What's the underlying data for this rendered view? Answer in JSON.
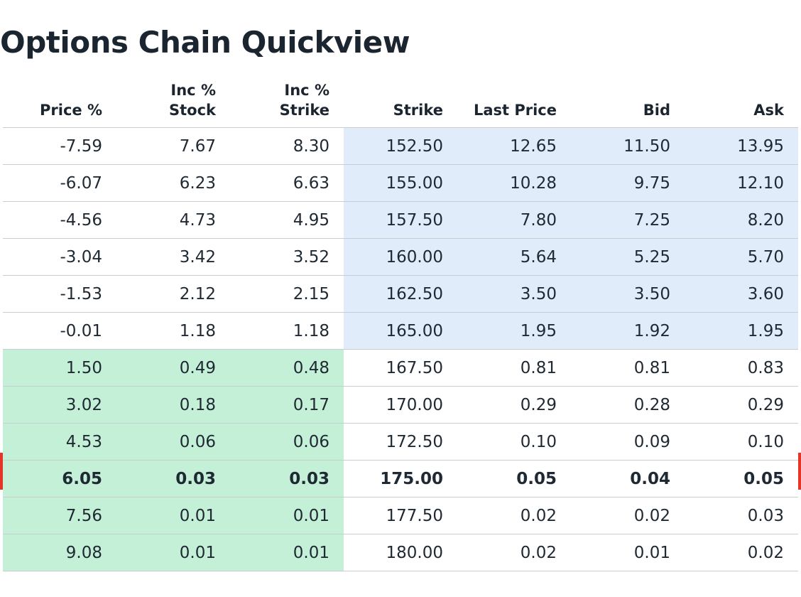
{
  "page": {
    "title": "Options Chain Quickview"
  },
  "colors": {
    "strike_band": "#e1ecfb",
    "premium_band": "#c5f0d8",
    "current_marker": "#e63426"
  },
  "table": {
    "columns": [
      "Price %",
      "Inc %\nStock",
      "Inc %\nStrike",
      "Strike",
      "Last Price",
      "Bid",
      "Ask"
    ],
    "rows": [
      [
        "-7.59",
        "7.67",
        "8.30",
        "152.50",
        "12.65",
        "11.50",
        "13.95"
      ],
      [
        "-6.07",
        "6.23",
        "6.63",
        "155.00",
        "10.28",
        "9.75",
        "12.10"
      ],
      [
        "-4.56",
        "4.73",
        "4.95",
        "157.50",
        "7.80",
        "7.25",
        "8.20"
      ],
      [
        "-3.04",
        "3.42",
        "3.52",
        "160.00",
        "5.64",
        "5.25",
        "5.70"
      ],
      [
        "-1.53",
        "2.12",
        "2.15",
        "162.50",
        "3.50",
        "3.50",
        "3.60"
      ],
      [
        "-0.01",
        "1.18",
        "1.18",
        "165.00",
        "1.95",
        "1.92",
        "1.95"
      ],
      [
        "1.50",
        "0.49",
        "0.48",
        "167.50",
        "0.81",
        "0.81",
        "0.83"
      ],
      [
        "3.02",
        "0.18",
        "0.17",
        "170.00",
        "0.29",
        "0.28",
        "0.29"
      ],
      [
        "4.53",
        "0.06",
        "0.06",
        "172.50",
        "0.10",
        "0.09",
        "0.10"
      ],
      [
        "6.05",
        "0.03",
        "0.03",
        "175.00",
        "0.05",
        "0.04",
        "0.05"
      ],
      [
        "7.56",
        "0.01",
        "0.01",
        "177.50",
        "0.02",
        "0.02",
        "0.03"
      ],
      [
        "9.08",
        "0.01",
        "0.01",
        "180.00",
        "0.02",
        "0.01",
        "0.02"
      ]
    ]
  }
}
